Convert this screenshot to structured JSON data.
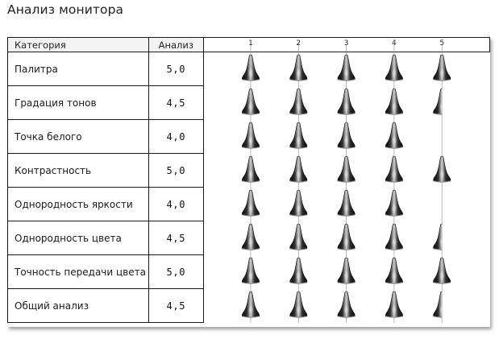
{
  "title": "Анализ монитора",
  "table": {
    "header": {
      "category": "Категория",
      "score": "Анализ"
    },
    "rows": [
      {
        "category": "Палитра",
        "score": "5,0"
      },
      {
        "category": "Градация тонов",
        "score": "4,5"
      },
      {
        "category": "Точка белого",
        "score": "4,0"
      },
      {
        "category": "Контрастность",
        "score": "5,0"
      },
      {
        "category": "Однородность яркости",
        "score": "4,0"
      },
      {
        "category": "Однородность цвета",
        "score": "4,5"
      },
      {
        "category": "Точность передачи цвета",
        "score": "5,0"
      },
      {
        "category": "Общий анализ",
        "score": "4,5"
      }
    ]
  },
  "chart_data": {
    "type": "bar",
    "categories": [
      "Палитра",
      "Градация тонов",
      "Точка белого",
      "Контрастность",
      "Однородность яркости",
      "Однородность цвета",
      "Точность передачи цвета",
      "Общий анализ"
    ],
    "values": [
      5.0,
      4.5,
      4.0,
      5.0,
      4.0,
      4.5,
      5.0,
      4.5
    ],
    "xticks": [
      "1",
      "2",
      "3",
      "4",
      "5"
    ],
    "xlim": [
      0.5,
      5
    ],
    "mark": "bell-shaped pictogram",
    "grid": true,
    "colors": {
      "mark_dark": "#111111",
      "mark_light": "#cfcfcf",
      "grid": "#9a9a9a",
      "border": "#1a1a1a"
    }
  }
}
